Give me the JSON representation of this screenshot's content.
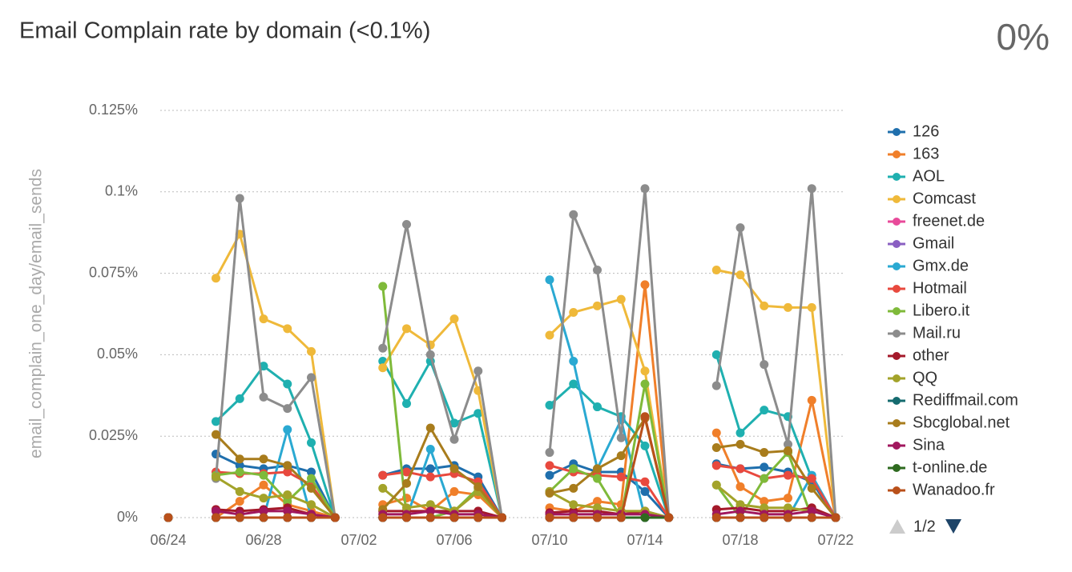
{
  "chart_data": {
    "type": "line",
    "title": "Email Complain rate by domain (<0.1%)",
    "headline": "0%",
    "y_label": "email_complain_one_day/email_sends",
    "legend_page": "1/2",
    "x": [
      "06/24",
      "06/25",
      "06/26",
      "06/27",
      "06/28",
      "06/29",
      "06/30",
      "07/01",
      "07/02",
      "07/03",
      "07/04",
      "07/05",
      "07/06",
      "07/07",
      "07/08",
      "07/09",
      "07/10",
      "07/11",
      "07/12",
      "07/13",
      "07/14",
      "07/15",
      "07/16",
      "07/17",
      "07/18",
      "07/19",
      "07/20",
      "07/21",
      "07/22"
    ],
    "xticks": [
      "06/24",
      "06/28",
      "07/02",
      "07/06",
      "07/10",
      "07/14",
      "07/18",
      "07/22"
    ],
    "ylim": [
      0,
      0.125
    ],
    "yticks": [
      {
        "value": 0,
        "label": "0%"
      },
      {
        "value": 0.025,
        "label": "0.025%"
      },
      {
        "value": 0.05,
        "label": "0.05%"
      },
      {
        "value": 0.075,
        "label": "0.075%"
      },
      {
        "value": 0.1,
        "label": "0.1%"
      },
      {
        "value": 0.125,
        "label": "0.125%"
      }
    ],
    "grid": true,
    "series": [
      {
        "name": "126",
        "color": "#1f6fad",
        "values": [
          0,
          null,
          0.0195,
          0.016,
          0.015,
          0.016,
          0.014,
          0,
          null,
          0.013,
          0.015,
          0.015,
          0.016,
          0.0125,
          0,
          null,
          0.013,
          0.0165,
          0.014,
          0.014,
          0.008,
          0,
          null,
          0.0165,
          0.015,
          0.0155,
          0.014,
          0.011,
          0
        ]
      },
      {
        "name": "163",
        "color": "#f07f2a",
        "values": [
          0,
          null,
          0,
          0.005,
          0.01,
          0.004,
          0.002,
          0,
          null,
          0.004,
          0.006,
          0.002,
          0.008,
          0.007,
          0,
          null,
          0.003,
          0.002,
          0.005,
          0.004,
          0.0715,
          0,
          null,
          0.026,
          0.0095,
          0.005,
          0.006,
          0.036,
          0
        ]
      },
      {
        "name": "AOL",
        "color": "#1fb0b0",
        "values": [
          0,
          null,
          0.0295,
          0.0365,
          0.0465,
          0.041,
          0.023,
          0,
          null,
          0.048,
          0.035,
          0.048,
          0.029,
          0.032,
          0,
          null,
          0.0345,
          0.041,
          0.034,
          0.031,
          0.022,
          0,
          null,
          0.05,
          0.026,
          0.033,
          0.031,
          0.012,
          0
        ]
      },
      {
        "name": "Comcast",
        "color": "#efb93a",
        "values": [
          0,
          null,
          0.0735,
          0.087,
          0.061,
          0.058,
          0.051,
          0,
          null,
          0.046,
          0.058,
          0.053,
          0.061,
          0.039,
          0,
          null,
          0.056,
          0.063,
          0.065,
          0.067,
          0.045,
          0,
          null,
          0.076,
          0.0745,
          0.065,
          0.0645,
          0.0645,
          0
        ]
      },
      {
        "name": "freenet.de",
        "color": "#e84a9a",
        "values": [
          0,
          null,
          0,
          0,
          0,
          0,
          0,
          0,
          null,
          0,
          0,
          0,
          0,
          0,
          0,
          null,
          0,
          0,
          0,
          0,
          0,
          0,
          null,
          0,
          0,
          0,
          0,
          0,
          0
        ]
      },
      {
        "name": "Gmail",
        "color": "#8a5fc2",
        "values": [
          0,
          null,
          0,
          0,
          0,
          0,
          0,
          0,
          null,
          0,
          0,
          0,
          0,
          0,
          0,
          null,
          0,
          0,
          0,
          0,
          0,
          0,
          null,
          0,
          0,
          0,
          0,
          0,
          0
        ]
      },
      {
        "name": "Gmx.de",
        "color": "#2aa9d2",
        "values": [
          0,
          null,
          0,
          0,
          0,
          0.027,
          0,
          0,
          null,
          0,
          0,
          0.021,
          0,
          0,
          0,
          null,
          0.073,
          0.048,
          0.015,
          0.03,
          0,
          0,
          null,
          0,
          0,
          0,
          0,
          0.013,
          0
        ]
      },
      {
        "name": "Hotmail",
        "color": "#e8493e",
        "values": [
          0,
          null,
          0.014,
          0.0135,
          0.0135,
          0.014,
          0.01,
          0,
          null,
          0.013,
          0.014,
          0.0125,
          0.0135,
          0.011,
          0,
          null,
          0.016,
          0.014,
          0.013,
          0.0125,
          0.011,
          0,
          null,
          0.016,
          0.015,
          0.012,
          0.013,
          0.012,
          0
        ]
      },
      {
        "name": "Libero.it",
        "color": "#7fba3a",
        "values": [
          0,
          null,
          0.013,
          0.014,
          0.013,
          0.005,
          0.012,
          0,
          null,
          0.071,
          0,
          0,
          0.002,
          0.009,
          0,
          null,
          0.008,
          0.015,
          0.012,
          0,
          0.041,
          0,
          null,
          0.01,
          0,
          0.012,
          0.02,
          0,
          0
        ]
      },
      {
        "name": "Mail.ru",
        "color": "#8c8c8c",
        "values": [
          0,
          null,
          0.012,
          0.098,
          0.037,
          0.0335,
          0.043,
          0,
          null,
          0.052,
          0.09,
          0.05,
          0.024,
          0.045,
          0,
          null,
          0.02,
          0.093,
          0.076,
          0.0245,
          0.101,
          0,
          null,
          0.0405,
          0.089,
          0.047,
          0.0225,
          0.101,
          0
        ]
      },
      {
        "name": "other",
        "color": "#a4192a",
        "values": [
          0,
          null,
          0.0025,
          0.002,
          0.0025,
          0.003,
          0.001,
          0,
          null,
          0.002,
          0.002,
          0.002,
          0.002,
          0.002,
          0,
          null,
          0.0015,
          0.002,
          0.002,
          0.001,
          0.002,
          0,
          null,
          0.0025,
          0.003,
          0.002,
          0.002,
          0.003,
          0
        ]
      },
      {
        "name": "QQ",
        "color": "#a3a32a",
        "values": [
          0,
          null,
          0.0125,
          0.008,
          0.006,
          0.007,
          0.004,
          0,
          null,
          0.009,
          0.003,
          0.004,
          0.002,
          0.008,
          0,
          null,
          0.008,
          0.004,
          0.003,
          0.002,
          0.002,
          0,
          null,
          0.01,
          0.004,
          0.003,
          0.003,
          0.002,
          0
        ]
      },
      {
        "name": "Rediffmail.com",
        "color": "#156b6f",
        "values": [
          0,
          null,
          0,
          0,
          0,
          0,
          0,
          0,
          null,
          0,
          0,
          0,
          0,
          0,
          0,
          null,
          0,
          0,
          0,
          0,
          0,
          0,
          null,
          0,
          0,
          0,
          0,
          0,
          0
        ]
      },
      {
        "name": "Sbcglobal.net",
        "color": "#a87c1c",
        "values": [
          0,
          null,
          0.0255,
          0.018,
          0.018,
          0.016,
          0.009,
          0,
          null,
          0.0025,
          0.0105,
          0.0275,
          0.015,
          0.0095,
          0,
          null,
          0.0075,
          0.009,
          0.015,
          0.019,
          0.0305,
          0,
          null,
          0.0215,
          0.0225,
          0.02,
          0.0205,
          0.009,
          0
        ]
      },
      {
        "name": "Sina",
        "color": "#a1175e",
        "values": [
          0,
          null,
          0.002,
          0.001,
          0.002,
          0.002,
          0.001,
          0,
          null,
          0.001,
          0.001,
          0.002,
          0.001,
          0.001,
          0,
          null,
          0.001,
          0.001,
          0.001,
          0.001,
          0.001,
          0,
          null,
          0.001,
          0.002,
          0.001,
          0.001,
          0.002,
          0
        ]
      },
      {
        "name": "t-online.de",
        "color": "#2e6a1f",
        "values": [
          0,
          null,
          0,
          0,
          0,
          0,
          0,
          0,
          null,
          0,
          0,
          0,
          0,
          0,
          0,
          null,
          0,
          0,
          0,
          0,
          0,
          0,
          null,
          0,
          0,
          0,
          0,
          0,
          0
        ]
      },
      {
        "name": "Wanadoo.fr",
        "color": "#b9501a",
        "values": [
          0,
          null,
          0,
          0,
          0,
          0,
          0,
          0,
          null,
          0,
          0,
          0,
          0,
          0,
          0,
          null,
          0,
          0,
          0,
          0,
          0.031,
          0,
          null,
          0,
          0,
          0,
          0,
          0,
          0
        ]
      }
    ]
  }
}
